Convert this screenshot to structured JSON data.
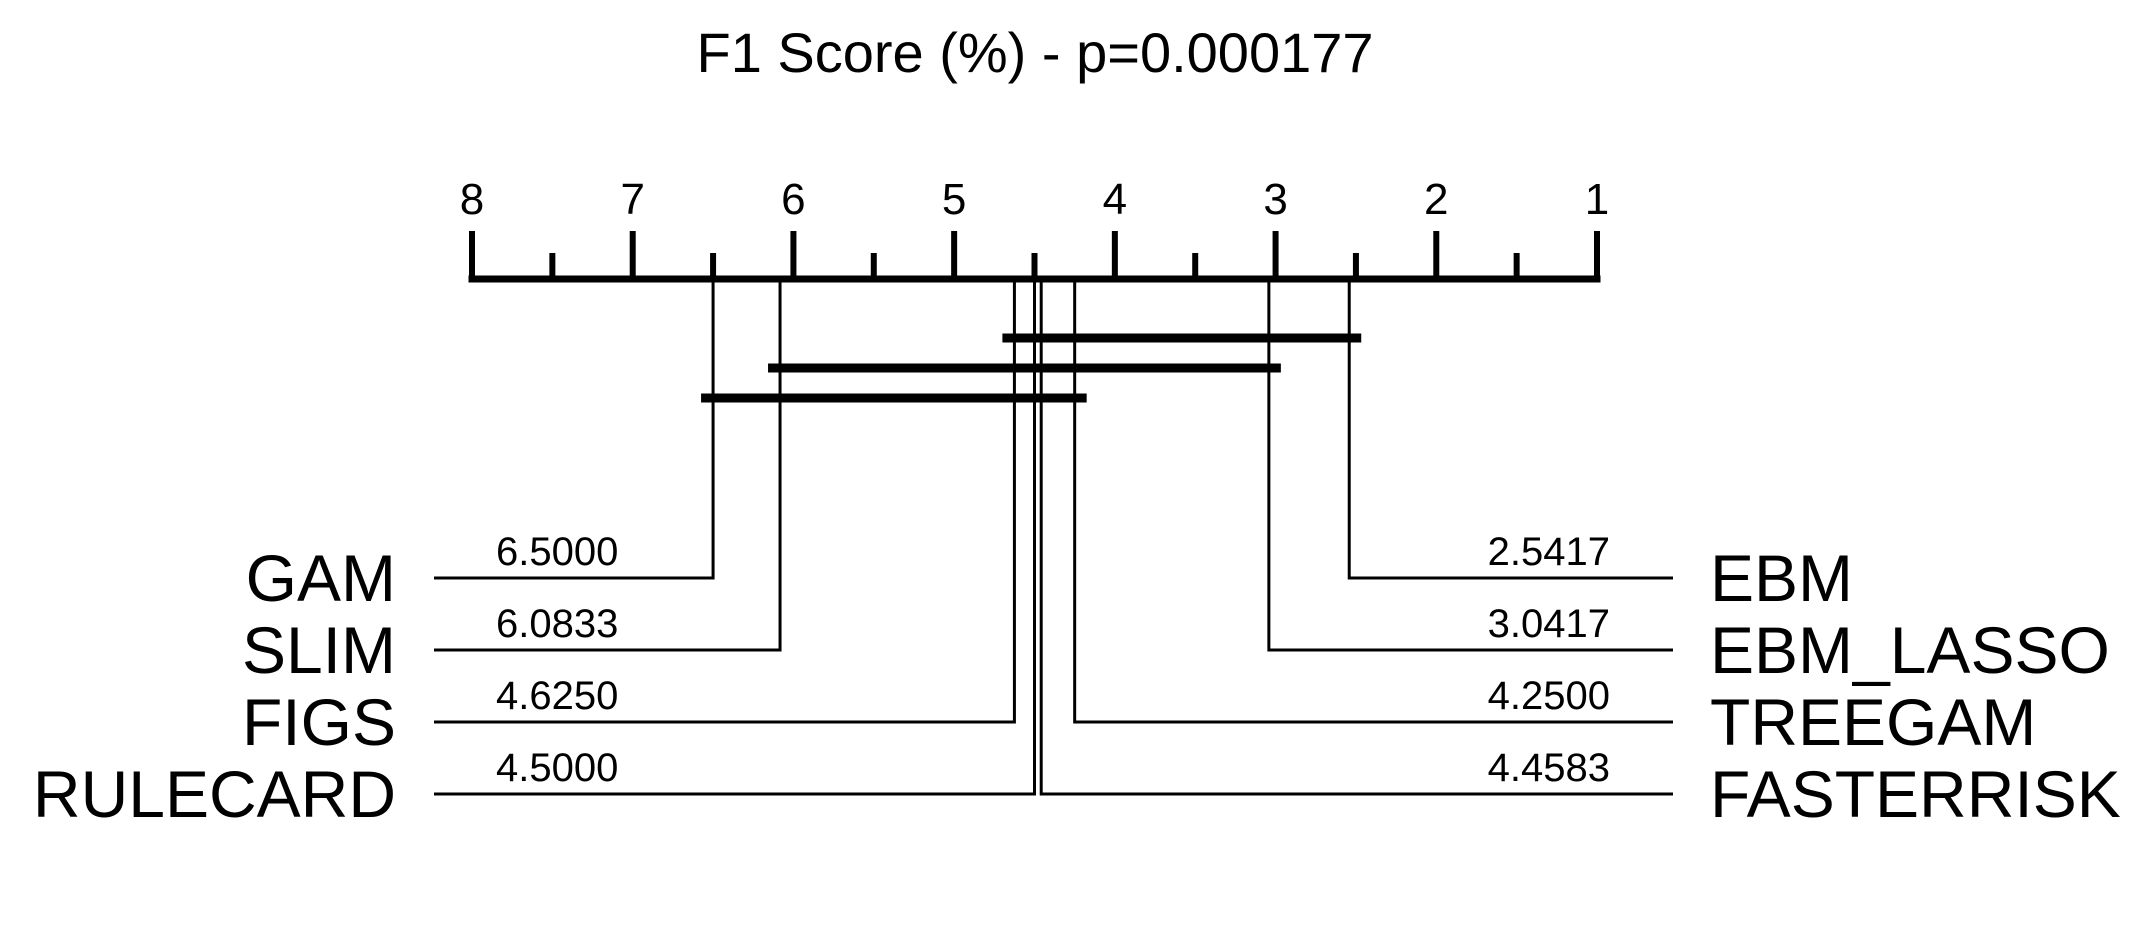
{
  "chart_data": {
    "type": "critical-difference",
    "title": "F1 Score (%) - p=0.000177",
    "axis": {
      "min": 1,
      "max": 8,
      "reversed": true,
      "major_ticks": [
        8,
        7,
        6,
        5,
        4,
        3,
        2,
        1
      ],
      "tick_labels": [
        "8",
        "7",
        "6",
        "5",
        "4",
        "3",
        "2",
        "1"
      ],
      "minor_step": 0.5
    },
    "left_methods": [
      {
        "name": "GAM",
        "rank": 6.5,
        "rank_label": "6.5000"
      },
      {
        "name": "SLIM",
        "rank": 6.0833,
        "rank_label": "6.0833"
      },
      {
        "name": "FIGS",
        "rank": 4.625,
        "rank_label": "4.6250"
      },
      {
        "name": "RULECARD",
        "rank": 4.5,
        "rank_label": "4.5000"
      }
    ],
    "right_methods": [
      {
        "name": "EBM",
        "rank": 2.5417,
        "rank_label": "2.5417"
      },
      {
        "name": "EBM_LASSO",
        "rank": 3.0417,
        "rank_label": "3.0417"
      },
      {
        "name": "TREEGAM",
        "rank": 4.25,
        "rank_label": "4.2500"
      },
      {
        "name": "FASTERRISK",
        "rank": 4.4583,
        "rank_label": "4.4583"
      }
    ],
    "cliques": [
      {
        "from": 4.625,
        "to": 2.5417
      },
      {
        "from": 6.0833,
        "to": 3.0417
      },
      {
        "from": 6.5,
        "to": 4.25
      }
    ]
  }
}
